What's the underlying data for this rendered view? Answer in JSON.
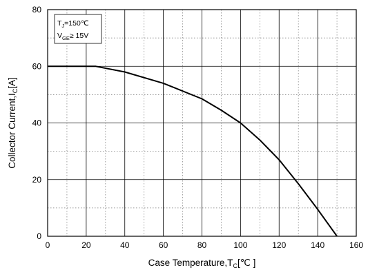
{
  "chart_data": {
    "type": "line",
    "xlabel": {
      "main": "Case Temperature,T",
      "sub": "C",
      "suffix": "[℃ ]"
    },
    "ylabel": {
      "main": "Collector Current,I",
      "sub": "C",
      "suffix": "[A]"
    },
    "xlim": [
      0,
      160
    ],
    "ylim": [
      0,
      80
    ],
    "x_major_ticks": [
      0,
      20,
      40,
      60,
      80,
      100,
      120,
      140,
      160
    ],
    "y_major_ticks": [
      0,
      20,
      40,
      60,
      80
    ],
    "x_minor_step": 10,
    "y_minor_step": 10,
    "grid": true,
    "legend_position": "top-left",
    "annotation": [
      {
        "main": "T",
        "sub": "J",
        "rest": "=150℃"
      },
      {
        "main": "V",
        "sub": "GE",
        "rest": "≥ 15V"
      }
    ],
    "series": [
      {
        "x": [
          0,
          20,
          25,
          40,
          60,
          80,
          90,
          100,
          110,
          120,
          130,
          140,
          150
        ],
        "y": [
          60,
          60,
          60,
          58,
          54,
          48.5,
          44.5,
          40,
          34,
          27,
          18.5,
          9.5,
          0
        ]
      }
    ]
  }
}
